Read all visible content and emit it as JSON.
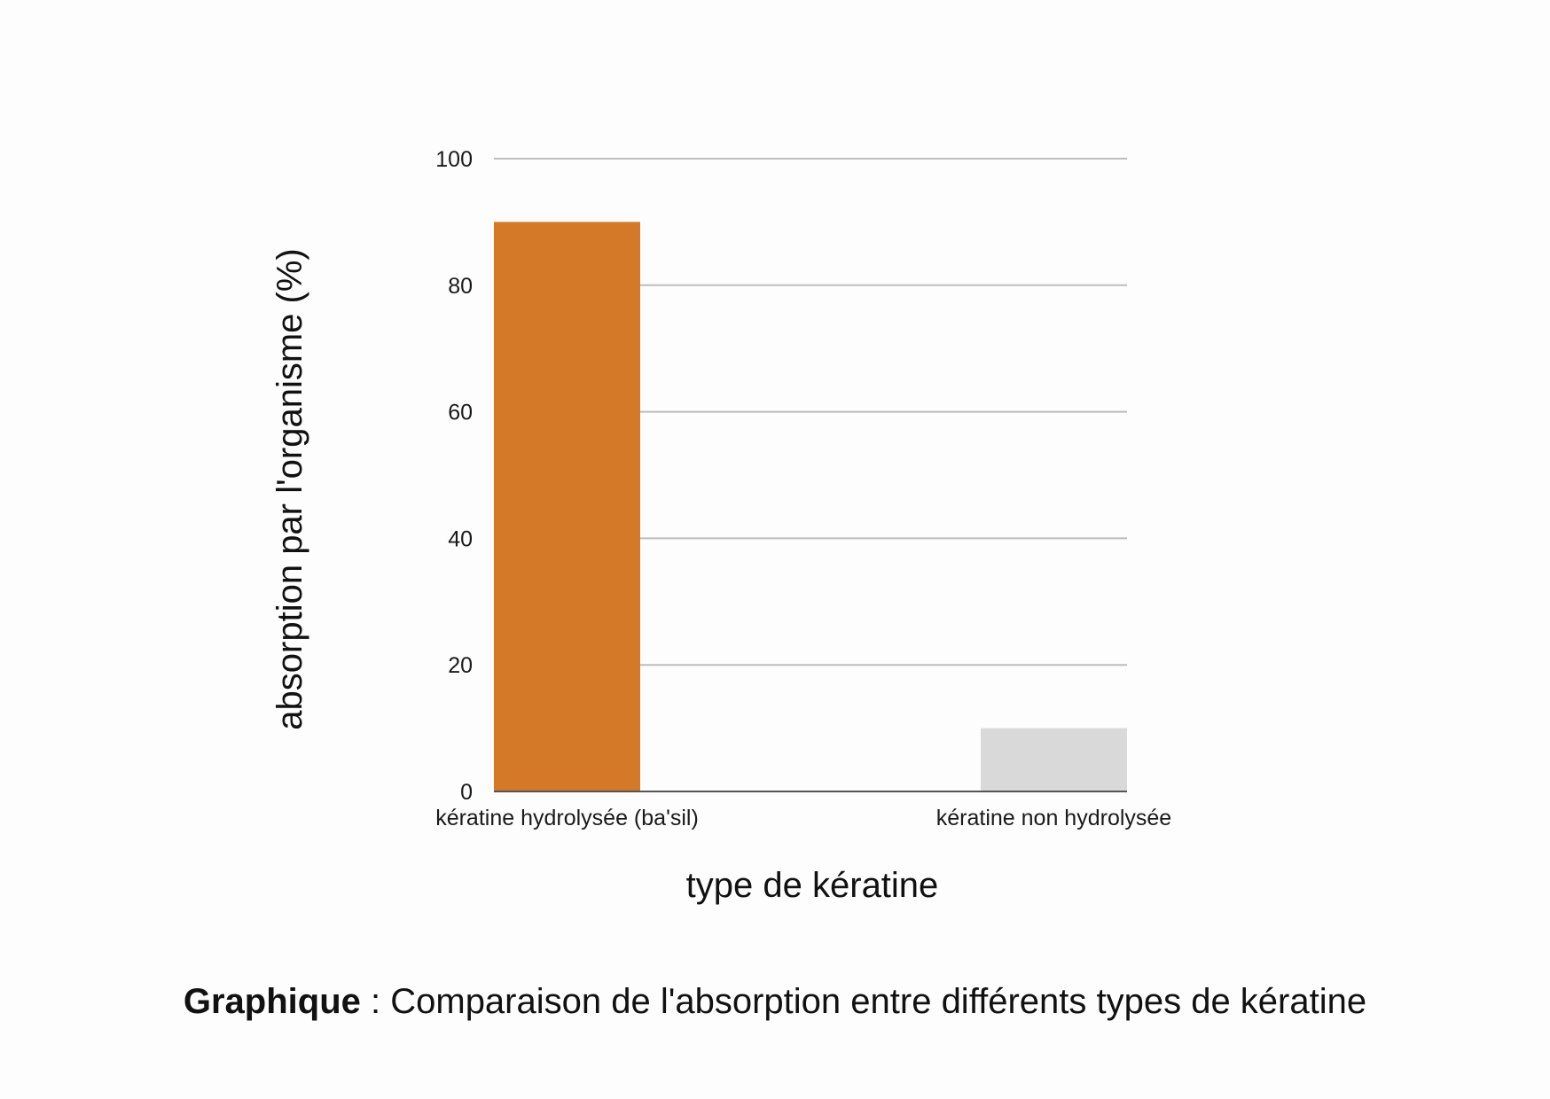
{
  "chart_data": {
    "type": "bar",
    "categories": [
      "kératine hydrolysée (ba'sil)",
      "kératine non hydrolysée"
    ],
    "values": [
      90,
      10
    ],
    "colors": [
      "#d47927",
      "#d9d9d9"
    ],
    "xlabel": "type de kératine",
    "ylabel": "absorption par l'organisme (%)",
    "ylim": [
      0,
      100
    ],
    "yticks": [
      0,
      20,
      40,
      60,
      80,
      100
    ],
    "grid": true,
    "legend": "none"
  },
  "caption": {
    "bold": "Graphique",
    "separator": " : ",
    "text": "Comparaison de l'absorption entre différents types de kératine"
  }
}
